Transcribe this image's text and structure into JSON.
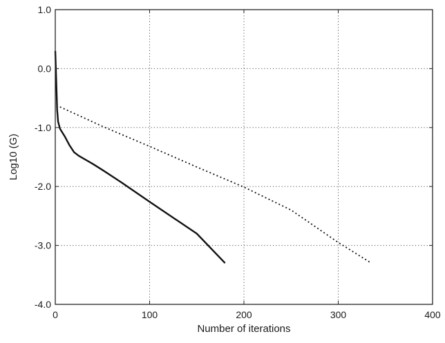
{
  "chart_data": {
    "type": "line",
    "title": "",
    "xlabel": "Number of iterations",
    "ylabel": "Log10 (G)",
    "xlim": [
      0,
      400
    ],
    "ylim": [
      -4.0,
      1.0
    ],
    "xticks": [
      0,
      100,
      200,
      300,
      400
    ],
    "xtick_labels": [
      "0",
      "100",
      "200",
      "300",
      "400"
    ],
    "yticks": [
      1.0,
      0.0,
      -1.0,
      -2.0,
      -3.0,
      -4.0
    ],
    "ytick_labels": [
      "1.0",
      "0.0",
      "-1.0",
      "-2.0",
      "-3.0",
      "-4.0"
    ],
    "grid": true,
    "legend": null,
    "series": [
      {
        "style": "solid",
        "color": "#111111",
        "x": [
          0,
          1,
          2,
          3,
          5,
          10,
          15,
          20,
          25,
          40,
          50,
          70,
          100,
          150,
          180
        ],
        "y": [
          0.3,
          -0.2,
          -0.7,
          -0.9,
          -1.02,
          -1.15,
          -1.3,
          -1.42,
          -1.48,
          -1.62,
          -1.72,
          -1.93,
          -2.26,
          -2.8,
          -3.3
        ]
      },
      {
        "style": "dotted",
        "color": "#111111",
        "x": [
          5,
          50,
          100,
          150,
          200,
          250,
          300,
          335
        ],
        "y": [
          -0.65,
          -0.98,
          -1.32,
          -1.67,
          -2.01,
          -2.4,
          -2.95,
          -3.3
        ]
      }
    ]
  }
}
